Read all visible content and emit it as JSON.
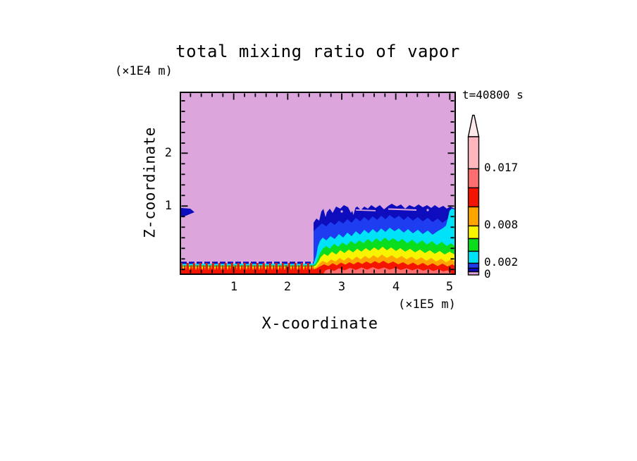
{
  "title": "total mixing ratio of vapor",
  "time_label": "t=40800 s",
  "axes": {
    "x": {
      "label": "X-coordinate",
      "unit": "(×1E5 m)",
      "tick_labels": [
        "1",
        "2",
        "3",
        "4",
        "5"
      ]
    },
    "z": {
      "label": "Z-coordinate",
      "unit": "(×1E4 m)",
      "tick_labels": [
        "2",
        "1"
      ]
    }
  },
  "colorbar": {
    "labels": [
      "0.017",
      "0.008",
      "0.002",
      "0"
    ],
    "overflow_arrow": "above-max"
  },
  "colors": {
    "plum": "#DCA6DC",
    "navy": "#0D0DBE",
    "blue": "#1E3CF0",
    "cyan": "#00E2F8",
    "green": "#0ADC1E",
    "yellow": "#F8F400",
    "orange": "#FFA400",
    "red": "#F51400",
    "salmon": "#FF6E6E",
    "lightpink": "#FFB6BC",
    "arrowpink": "#FFE8EC",
    "frame": "#000000"
  },
  "chart_data": {
    "type": "heatmap",
    "variant": "filled contour cross-section (NCAR-graphics style)",
    "title": "total mixing ratio of vapor",
    "annotation": "t=40800 s",
    "xlabel": "X-coordinate",
    "x_unit": "(×1E5 m)",
    "ylabel": "Z-coordinate",
    "y_unit": "(×1E4 m)",
    "x_ticks": [
      1,
      2,
      3,
      4,
      5
    ],
    "y_ticks": [
      1,
      2
    ],
    "xlim": [
      0,
      5.1
    ],
    "ylim": [
      0,
      2.9
    ],
    "grid": false,
    "legend_position": "colorbar right, vertical, arrow overflow at top",
    "colorbar_labeled_levels": [
      0,
      0.002,
      0.008,
      0.017
    ],
    "colorbar_levels_estimated": [
      0.0005,
      0.001,
      0.002,
      0.004,
      0.006,
      0.008,
      0.011,
      0.014,
      0.017
    ],
    "colorbar_colors_bottom_to_top": [
      "plum",
      "navy",
      "blue",
      "cyan",
      "green",
      "yellow",
      "orange",
      "red",
      "salmon",
      "lightpink"
    ],
    "field_description": [
      {
        "region": "x 0 to ~2.5, z above ~0.2",
        "value": "background < 0.0005 (plum)"
      },
      {
        "region": "x 0 to ~2.5, z 0 to ~0.2",
        "value": "thin surface moist layer; stacked bands navy/cyan/green/yellow/orange with spiky red columns >0.014 at the surface"
      },
      {
        "region": "x ~2.5 to 5.1, z 0 to ~1.05",
        "value": "deep moist layer; stratified jagged bands from navy (~0.0005-0.001) at z~1 down through blue, cyan, green, yellow, orange, red to salmon (>0.017) at the surface"
      },
      {
        "region": "left wall x~0, z ~0.95-1.05",
        "value": "small navy patch (0.0005-0.001)"
      }
    ]
  }
}
